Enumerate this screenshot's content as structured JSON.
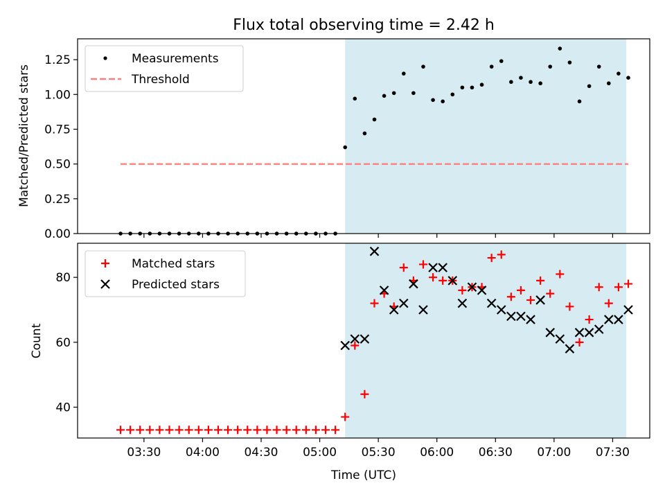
{
  "chart_data": [
    {
      "type": "scatter",
      "title": "Flux total observing time = 2.42 h",
      "xlabel": "",
      "ylabel": "Matched/Predicted stars",
      "ylim": [
        0,
        1.4
      ],
      "yticks": [
        "0.00",
        "0.25",
        "0.50",
        "0.75",
        "1.00",
        "1.25"
      ],
      "grid": false,
      "legend_position": "top-left",
      "shaded_region": {
        "x_start": "05:13",
        "x_end": "07:37",
        "color": "#add8e6"
      },
      "series": [
        {
          "name": "Measurements",
          "color": "#000000",
          "marker": "dot",
          "x": [
            "03:18",
            "03:23",
            "03:28",
            "03:33",
            "03:38",
            "03:43",
            "03:48",
            "03:53",
            "03:58",
            "04:03",
            "04:08",
            "04:13",
            "04:18",
            "04:23",
            "04:28",
            "04:33",
            "04:38",
            "04:43",
            "04:48",
            "04:53",
            "04:58",
            "05:03",
            "05:08",
            "05:13",
            "05:18",
            "05:23",
            "05:28",
            "05:33",
            "05:38",
            "05:43",
            "05:48",
            "05:53",
            "05:58",
            "06:03",
            "06:08",
            "06:13",
            "06:18",
            "06:23",
            "06:28",
            "06:33",
            "06:38",
            "06:43",
            "06:48",
            "06:53",
            "06:58",
            "07:03",
            "07:08",
            "07:13",
            "07:18",
            "07:23",
            "07:28",
            "07:33",
            "07:38"
          ],
          "y": [
            0,
            0,
            0,
            0,
            0,
            0,
            0,
            0,
            0,
            0,
            0,
            0,
            0,
            0,
            0,
            0,
            0,
            0,
            0,
            0,
            0,
            0,
            0,
            0.62,
            0.97,
            0.72,
            0.82,
            0.99,
            1.01,
            1.15,
            1.01,
            1.2,
            0.96,
            0.95,
            1.0,
            1.05,
            1.05,
            1.07,
            1.2,
            1.24,
            1.09,
            1.12,
            1.09,
            1.08,
            1.2,
            1.33,
            1.23,
            0.95,
            1.06,
            1.2,
            1.08,
            1.15,
            1.12
          ]
        },
        {
          "name": "Threshold",
          "color": "#ff7f7f",
          "style": "dashed",
          "x": [
            "03:18",
            "07:38"
          ],
          "y": [
            0.5,
            0.5
          ]
        }
      ]
    },
    {
      "type": "scatter",
      "title": "",
      "xlabel": "Time (UTC)",
      "ylabel": "Count",
      "ylim": [
        30.5,
        90.5
      ],
      "yticks": [
        "40",
        "60",
        "80"
      ],
      "xticks": [
        "03:30",
        "04:00",
        "04:30",
        "05:00",
        "05:30",
        "06:00",
        "06:30",
        "07:00",
        "07:30"
      ],
      "xlim": [
        "02:56",
        "07:49"
      ],
      "grid": false,
      "legend_position": "top-left",
      "shaded_region": {
        "x_start": "05:13",
        "x_end": "07:37",
        "color": "#add8e6"
      },
      "series": [
        {
          "name": "Matched stars",
          "color": "#ff0000",
          "marker": "plus",
          "x": [
            "03:18",
            "03:23",
            "03:28",
            "03:33",
            "03:38",
            "03:43",
            "03:48",
            "03:53",
            "03:58",
            "04:03",
            "04:08",
            "04:13",
            "04:18",
            "04:23",
            "04:28",
            "04:33",
            "04:38",
            "04:43",
            "04:48",
            "04:53",
            "04:58",
            "05:03",
            "05:08",
            "05:13",
            "05:18",
            "05:23",
            "05:28",
            "05:33",
            "05:38",
            "05:43",
            "05:48",
            "05:53",
            "05:58",
            "06:03",
            "06:08",
            "06:13",
            "06:18",
            "06:23",
            "06:28",
            "06:33",
            "06:38",
            "06:43",
            "06:48",
            "06:53",
            "06:58",
            "07:03",
            "07:08",
            "07:13",
            "07:18",
            "07:23",
            "07:28",
            "07:33",
            "07:38"
          ],
          "y": [
            33,
            33,
            33,
            33,
            33,
            33,
            33,
            33,
            33,
            33,
            33,
            33,
            33,
            33,
            33,
            33,
            33,
            33,
            33,
            33,
            33,
            33,
            33,
            37,
            59,
            44,
            72,
            75,
            71,
            83,
            79,
            84,
            80,
            79,
            79,
            76,
            77,
            77,
            86,
            87,
            74,
            76,
            73,
            79,
            75,
            81,
            71,
            60,
            67,
            77,
            72,
            77,
            78
          ]
        },
        {
          "name": "Predicted stars",
          "color": "#000000",
          "marker": "x",
          "x": [
            "05:13",
            "05:18",
            "05:23",
            "05:28",
            "05:33",
            "05:38",
            "05:43",
            "05:48",
            "05:53",
            "05:58",
            "06:03",
            "06:08",
            "06:13",
            "06:18",
            "06:23",
            "06:28",
            "06:33",
            "06:38",
            "06:43",
            "06:48",
            "06:53",
            "06:58",
            "07:03",
            "07:08",
            "07:13",
            "07:18",
            "07:23",
            "07:28",
            "07:33",
            "07:38"
          ],
          "y": [
            59,
            61,
            61,
            88,
            76,
            70,
            72,
            78,
            70,
            83,
            83,
            79,
            72,
            77,
            76,
            72,
            70,
            68,
            68,
            67,
            73,
            63,
            61,
            58,
            63,
            63,
            64,
            67,
            67,
            70
          ]
        }
      ]
    }
  ]
}
